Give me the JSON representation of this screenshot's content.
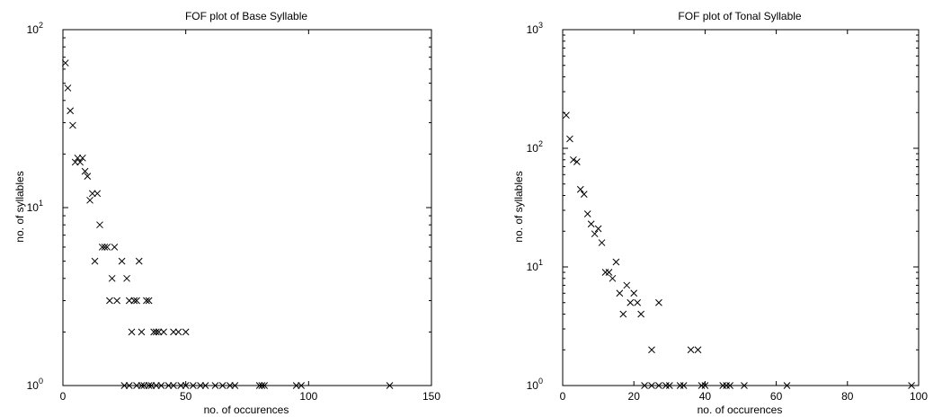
{
  "chart_data": [
    {
      "type": "scatter",
      "title": "FOF plot of Base Syllable",
      "xlabel": "no. of occurences",
      "ylabel": "no. of syllables",
      "y_scale": "log",
      "xlim": [
        0,
        150
      ],
      "ylim": [
        1,
        100
      ],
      "x_ticks": [
        "0",
        "50",
        "100",
        "150"
      ],
      "y_ticks": [
        {
          "base": "10",
          "exp": "0"
        },
        {
          "base": "10",
          "exp": "1"
        },
        {
          "base": "10",
          "exp": "2"
        }
      ],
      "marker": "x",
      "points": [
        [
          1,
          65
        ],
        [
          2,
          47
        ],
        [
          3,
          35
        ],
        [
          4,
          29
        ],
        [
          5,
          18
        ],
        [
          6,
          19
        ],
        [
          7,
          18
        ],
        [
          8,
          19
        ],
        [
          9,
          16
        ],
        [
          10,
          15
        ],
        [
          11,
          11
        ],
        [
          12,
          12
        ],
        [
          13,
          5
        ],
        [
          14,
          12
        ],
        [
          15,
          8
        ],
        [
          16,
          6
        ],
        [
          17,
          6
        ],
        [
          18,
          6
        ],
        [
          19,
          3
        ],
        [
          20,
          4
        ],
        [
          21,
          6
        ],
        [
          22,
          3
        ],
        [
          24,
          5
        ],
        [
          26,
          4
        ],
        [
          27,
          3
        ],
        [
          28,
          2
        ],
        [
          29,
          3
        ],
        [
          30,
          3
        ],
        [
          31,
          5
        ],
        [
          32,
          2
        ],
        [
          34,
          3
        ],
        [
          35,
          3
        ],
        [
          37,
          2
        ],
        [
          38,
          2
        ],
        [
          39,
          2
        ],
        [
          41,
          2
        ],
        [
          45,
          2
        ],
        [
          47,
          2
        ],
        [
          50,
          2
        ],
        [
          25,
          1
        ],
        [
          27,
          1
        ],
        [
          30,
          1
        ],
        [
          32,
          1
        ],
        [
          33,
          1
        ],
        [
          35,
          1
        ],
        [
          36,
          1
        ],
        [
          38,
          1
        ],
        [
          40,
          1
        ],
        [
          43,
          1
        ],
        [
          45,
          1
        ],
        [
          48,
          1
        ],
        [
          50,
          1
        ],
        [
          53,
          1
        ],
        [
          56,
          1
        ],
        [
          58,
          1
        ],
        [
          62,
          1
        ],
        [
          65,
          1
        ],
        [
          68,
          1
        ],
        [
          70,
          1
        ],
        [
          80,
          1
        ],
        [
          81,
          1
        ],
        [
          82,
          1
        ],
        [
          95,
          1
        ],
        [
          97,
          1
        ],
        [
          133,
          1
        ]
      ]
    },
    {
      "type": "scatter",
      "title": "FOF plot of Tonal Syllable",
      "xlabel": "no. of occurences",
      "ylabel": "no. of syllables",
      "y_scale": "log",
      "xlim": [
        0,
        100
      ],
      "ylim": [
        1,
        1000
      ],
      "x_ticks": [
        "0",
        "20",
        "40",
        "60",
        "80",
        "100"
      ],
      "y_ticks": [
        {
          "base": "10",
          "exp": "0"
        },
        {
          "base": "10",
          "exp": "1"
        },
        {
          "base": "10",
          "exp": "2"
        },
        {
          "base": "10",
          "exp": "3"
        }
      ],
      "marker": "x",
      "points": [
        [
          1,
          190
        ],
        [
          2,
          120
        ],
        [
          3,
          80
        ],
        [
          4,
          77
        ],
        [
          5,
          45
        ],
        [
          6,
          41
        ],
        [
          7,
          28
        ],
        [
          8,
          23
        ],
        [
          9,
          19
        ],
        [
          10,
          21
        ],
        [
          11,
          16
        ],
        [
          12,
          9
        ],
        [
          13,
          9
        ],
        [
          14,
          8
        ],
        [
          15,
          11
        ],
        [
          16,
          6
        ],
        [
          17,
          4
        ],
        [
          18,
          7
        ],
        [
          19,
          5
        ],
        [
          20,
          6
        ],
        [
          21,
          5
        ],
        [
          22,
          4
        ],
        [
          25,
          2
        ],
        [
          27,
          5
        ],
        [
          36,
          2
        ],
        [
          38,
          2
        ],
        [
          23,
          1
        ],
        [
          25,
          1
        ],
        [
          27,
          1
        ],
        [
          29,
          1
        ],
        [
          30,
          1
        ],
        [
          33,
          1
        ],
        [
          34,
          1
        ],
        [
          39,
          1
        ],
        [
          40,
          1
        ],
        [
          45,
          1
        ],
        [
          46,
          1
        ],
        [
          47,
          1
        ],
        [
          51,
          1
        ],
        [
          63,
          1
        ],
        [
          98,
          1
        ]
      ]
    }
  ]
}
